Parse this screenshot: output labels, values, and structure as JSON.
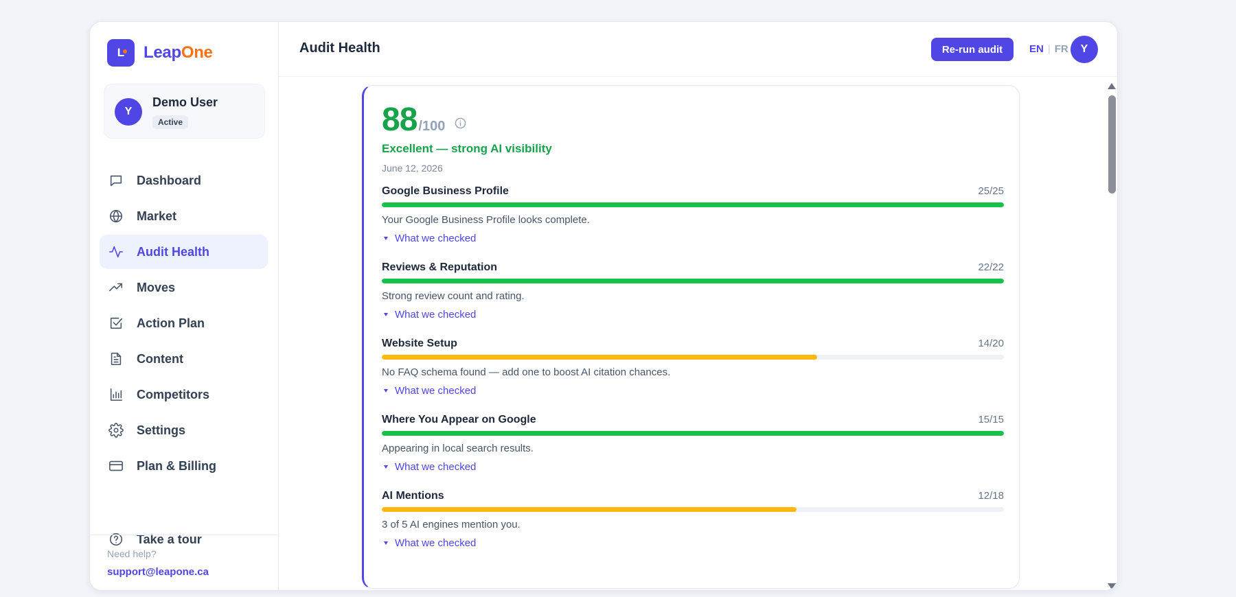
{
  "brand": {
    "mark": "L",
    "name_part1": "Leap",
    "name_part2": "One"
  },
  "user": {
    "initial": "Y",
    "name": "Demo User",
    "status": "Active"
  },
  "sidebar": {
    "items": [
      {
        "label": "Dashboard",
        "icon": "chat-bubble-icon",
        "active": false
      },
      {
        "label": "Market",
        "icon": "globe-icon",
        "active": false
      },
      {
        "label": "Audit Health",
        "icon": "pulse-icon",
        "active": true
      },
      {
        "label": "Moves",
        "icon": "trending-up-icon",
        "active": false
      },
      {
        "label": "Action Plan",
        "icon": "checkbox-icon",
        "active": false
      },
      {
        "label": "Content",
        "icon": "document-icon",
        "active": false
      },
      {
        "label": "Competitors",
        "icon": "bar-chart-icon",
        "active": false
      },
      {
        "label": "Settings",
        "icon": "gear-icon",
        "active": false
      },
      {
        "label": "Plan & Billing",
        "icon": "credit-card-icon",
        "active": false
      }
    ],
    "tour_label": "Take a tour",
    "help_label": "Need help?",
    "help_email": "support@leapone.ca"
  },
  "header": {
    "title": "Audit Health",
    "rerun_label": "Re-run audit",
    "lang_en": "EN",
    "lang_sep": "|",
    "lang_fr": "FR",
    "avatar_initial": "Y"
  },
  "audit": {
    "score": "88",
    "score_max": "/100",
    "verdict": "Excellent — strong AI visibility",
    "date": "June 12, 2026",
    "toggle_label": "What we checked",
    "colors": {
      "full": "#16c24a",
      "partial": "#fbb90f",
      "accent": "#4f46e5"
    },
    "categories": [
      {
        "name": "Google Business Profile",
        "score": "25/25",
        "fraction": 1.0,
        "status": "full",
        "description": "Your Google Business Profile looks complete.",
        "toggle": "What we checked"
      },
      {
        "name": "Reviews & Reputation",
        "score": "22/22",
        "fraction": 1.0,
        "status": "full",
        "description": "Strong review count and rating.",
        "toggle": "What we checked"
      },
      {
        "name": "Website Setup",
        "score": "14/20",
        "fraction": 0.7,
        "status": "partial",
        "description": "No FAQ schema found — add one to boost AI citation chances.",
        "toggle": "What we checked"
      },
      {
        "name": "Where You Appear on Google",
        "score": "15/15",
        "fraction": 1.0,
        "status": "full",
        "description": "Appearing in local search results.",
        "toggle": "What we checked"
      },
      {
        "name": "AI Mentions",
        "score": "12/18",
        "fraction": 0.667,
        "status": "partial",
        "description": "3 of 5 AI engines mention you.",
        "toggle": "What we checked"
      }
    ]
  }
}
